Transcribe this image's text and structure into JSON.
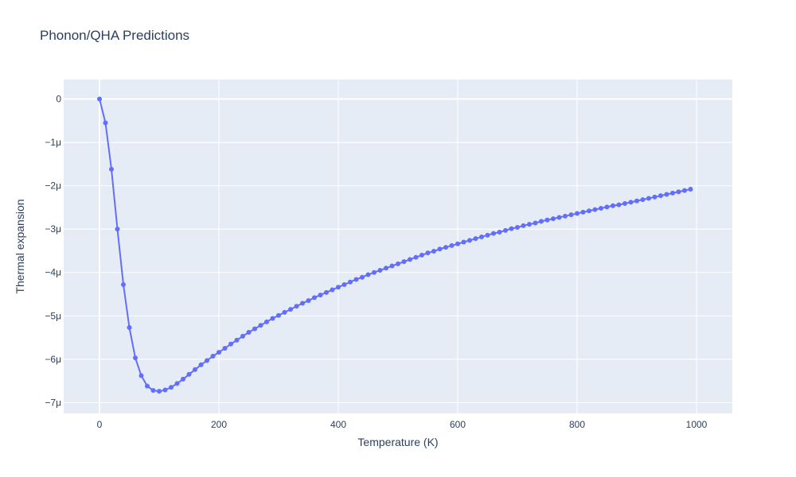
{
  "chart_data": {
    "type": "line",
    "title": "Phonon/QHA Predictions",
    "xlabel": "Temperature (K)",
    "ylabel": "Thermal expansion",
    "xlim": [
      -60,
      1060
    ],
    "ylim": [
      -7.25e-06,
      4.5e-07
    ],
    "x_ticks": [
      0,
      200,
      400,
      600,
      800,
      1000
    ],
    "x_tick_labels": [
      "0",
      "200",
      "400",
      "600",
      "800",
      "1000"
    ],
    "y_ticks": [
      0,
      -1e-06,
      -2e-06,
      -3e-06,
      -4e-06,
      -5e-06,
      -6e-06,
      -7e-06
    ],
    "y_tick_labels": [
      "0",
      "−1μ",
      "−2μ",
      "−3μ",
      "−4μ",
      "−5μ",
      "−6μ",
      "−7μ"
    ],
    "grid": true,
    "legend": "none",
    "colors": {
      "plot_bg": "#e5ecf6",
      "line": "#636efa",
      "grid": "#ffffff",
      "text": "#2a3f5f"
    },
    "series": [
      {
        "mode": "lines+markers",
        "x": [
          0,
          10,
          20,
          30,
          40,
          50,
          60,
          70,
          80,
          90,
          100,
          110,
          120,
          130,
          140,
          150,
          160,
          170,
          180,
          190,
          200,
          210,
          220,
          230,
          240,
          250,
          260,
          270,
          280,
          290,
          300,
          310,
          320,
          330,
          340,
          350,
          360,
          370,
          380,
          390,
          400,
          410,
          420,
          430,
          440,
          450,
          460,
          470,
          480,
          490,
          500,
          510,
          520,
          530,
          540,
          550,
          560,
          570,
          580,
          590,
          600,
          610,
          620,
          630,
          640,
          650,
          660,
          670,
          680,
          690,
          700,
          710,
          720,
          730,
          740,
          750,
          760,
          770,
          780,
          790,
          800,
          810,
          820,
          830,
          840,
          850,
          860,
          870,
          880,
          890,
          900,
          910,
          920,
          930,
          940,
          950,
          960,
          970,
          980,
          990
        ],
        "y": [
          0,
          -5.5e-07,
          -1.62e-06,
          -3e-06,
          -4.28e-06,
          -5.27e-06,
          -5.97e-06,
          -6.38e-06,
          -6.62e-06,
          -6.72e-06,
          -6.74e-06,
          -6.71e-06,
          -6.65e-06,
          -6.56e-06,
          -6.46e-06,
          -6.35e-06,
          -6.24e-06,
          -6.13e-06,
          -6.03e-06,
          -5.93e-06,
          -5.84e-06,
          -5.75e-06,
          -5.65e-06,
          -5.56e-06,
          -5.47e-06,
          -5.38e-06,
          -5.3e-06,
          -5.22e-06,
          -5.14e-06,
          -5.06e-06,
          -4.99e-06,
          -4.92e-06,
          -4.85e-06,
          -4.78e-06,
          -4.71e-06,
          -4.65e-06,
          -4.58e-06,
          -4.52e-06,
          -4.46e-06,
          -4.4e-06,
          -4.34e-06,
          -4.28e-06,
          -4.22e-06,
          -4.16e-06,
          -4.11e-06,
          -4.05e-06,
          -4e-06,
          -3.95e-06,
          -3.9e-06,
          -3.85e-06,
          -3.8e-06,
          -3.75e-06,
          -3.7e-06,
          -3.65e-06,
          -3.6e-06,
          -3.55e-06,
          -3.51e-06,
          -3.46e-06,
          -3.42e-06,
          -3.38e-06,
          -3.34e-06,
          -3.3e-06,
          -3.26e-06,
          -3.22e-06,
          -3.18e-06,
          -3.14e-06,
          -3.1e-06,
          -3.07e-06,
          -3.03e-06,
          -2.99e-06,
          -2.96e-06,
          -2.92e-06,
          -2.89e-06,
          -2.86e-06,
          -2.82e-06,
          -2.79e-06,
          -2.76e-06,
          -2.73e-06,
          -2.7e-06,
          -2.67e-06,
          -2.64e-06,
          -2.61e-06,
          -2.58e-06,
          -2.55e-06,
          -2.52e-06,
          -2.49e-06,
          -2.46e-06,
          -2.44e-06,
          -2.41e-06,
          -2.38e-06,
          -2.35e-06,
          -2.32e-06,
          -2.29e-06,
          -2.26e-06,
          -2.23e-06,
          -2.2e-06,
          -2.17e-06,
          -2.14e-06,
          -2.11e-06,
          -2.08e-06
        ]
      }
    ]
  }
}
